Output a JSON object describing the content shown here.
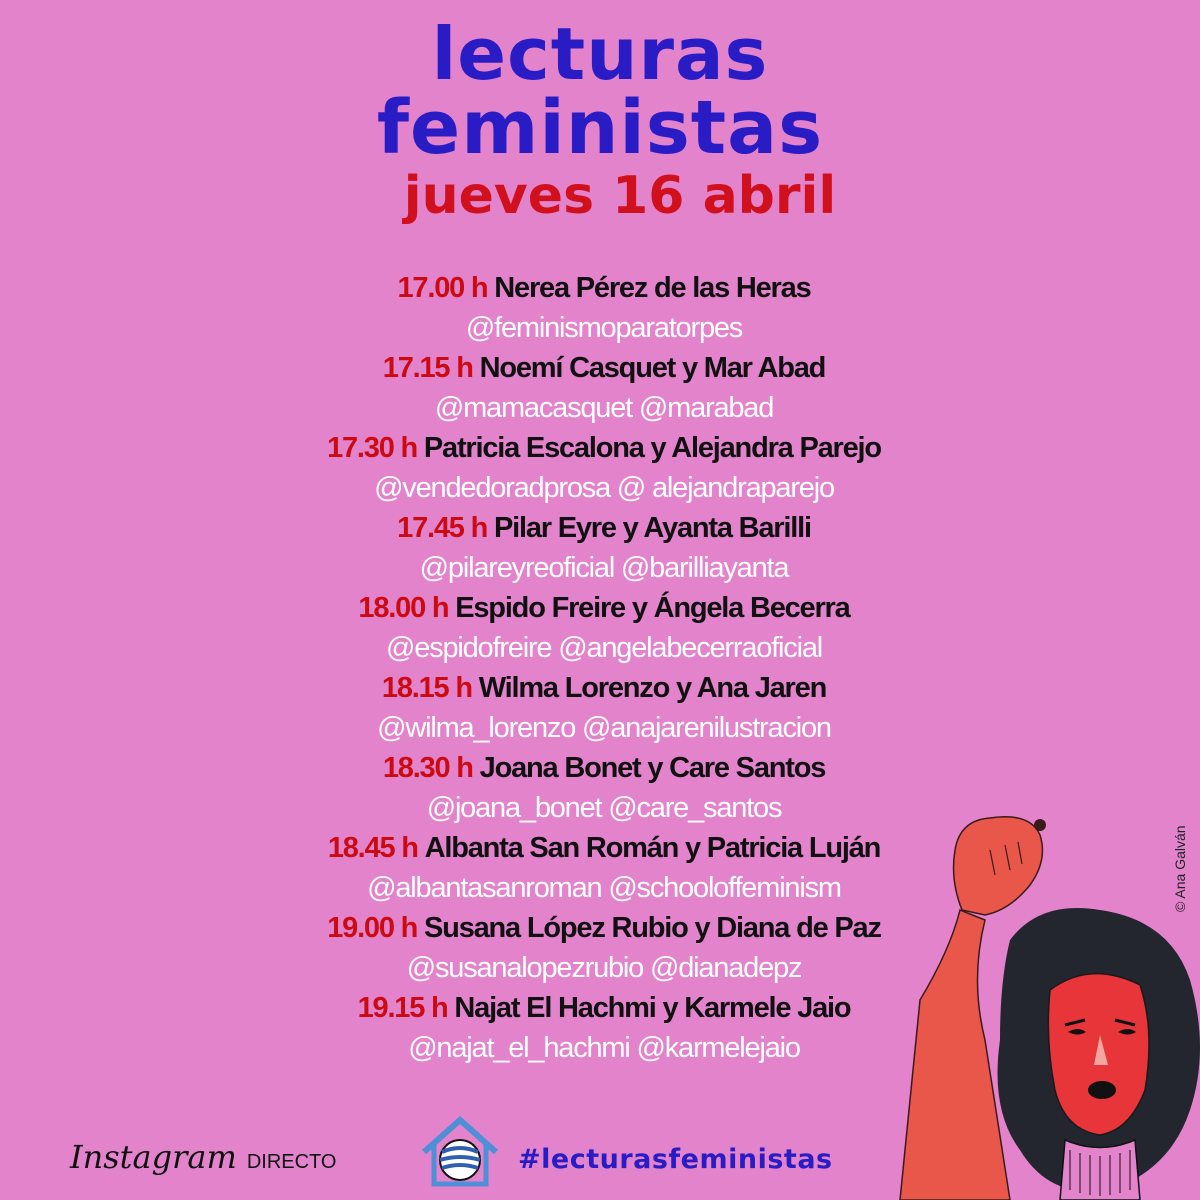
{
  "header": {
    "title_line1": "lecturas",
    "title_line2": "feministas",
    "date": "jueves 16 abril"
  },
  "schedule": [
    {
      "time": "17.00 h",
      "name": "Nerea Pérez de las Heras",
      "handles": "@feminismoparatorpes"
    },
    {
      "time": "17.15 h",
      "name": "Noemí Casquet y Mar Abad",
      "handles": "@mamacasquet @marabad"
    },
    {
      "time": "17.30 h",
      "name": "Patricia Escalona y Alejandra Parejo",
      "handles": "@vendedoradprosa @ alejandraparejo"
    },
    {
      "time": "17.45 h",
      "name": "Pilar Eyre y Ayanta Barilli",
      "handles": "@pilareyreoficial @barilliayanta"
    },
    {
      "time": "18.00 h",
      "name": "Espido Freire y Ángela Becerra",
      "handles": "@espidofreire @angelabecerraoficial"
    },
    {
      "time": "18.15 h",
      "name": "Wilma Lorenzo y Ana Jaren",
      "handles": "@wilma_lorenzo @anajarenilustracion"
    },
    {
      "time": "18.30 h",
      "name": "Joana Bonet y Care Santos",
      "handles": "@joana_bonet @care_santos"
    },
    {
      "time": "18.45 h",
      "name": "Albanta San Román y Patricia Luján",
      "handles": "@albantasanroman @schooloffeminism"
    },
    {
      "time": "19.00 h",
      "name": "Susana López Rubio y Diana de Paz",
      "handles": "@susanalopezrubio @dianadepz"
    },
    {
      "time": "19.15 h",
      "name": "Najat El Hachmi y Karmele Jaio",
      "handles": "@najat_el_hachmi @karmelejaio"
    }
  ],
  "credit": "© Ana Galván",
  "footer": {
    "instagram_logo": "Instagram",
    "instagram_label": "DIRECTO",
    "hashtag": "#lecturasfeministas",
    "logo_icon": "house-globe-icon"
  },
  "colors": {
    "background": "#e283cc",
    "title": "#2a1cc4",
    "date": "#d0101c",
    "time": "#cc0a12",
    "handles": "#ffffff"
  }
}
